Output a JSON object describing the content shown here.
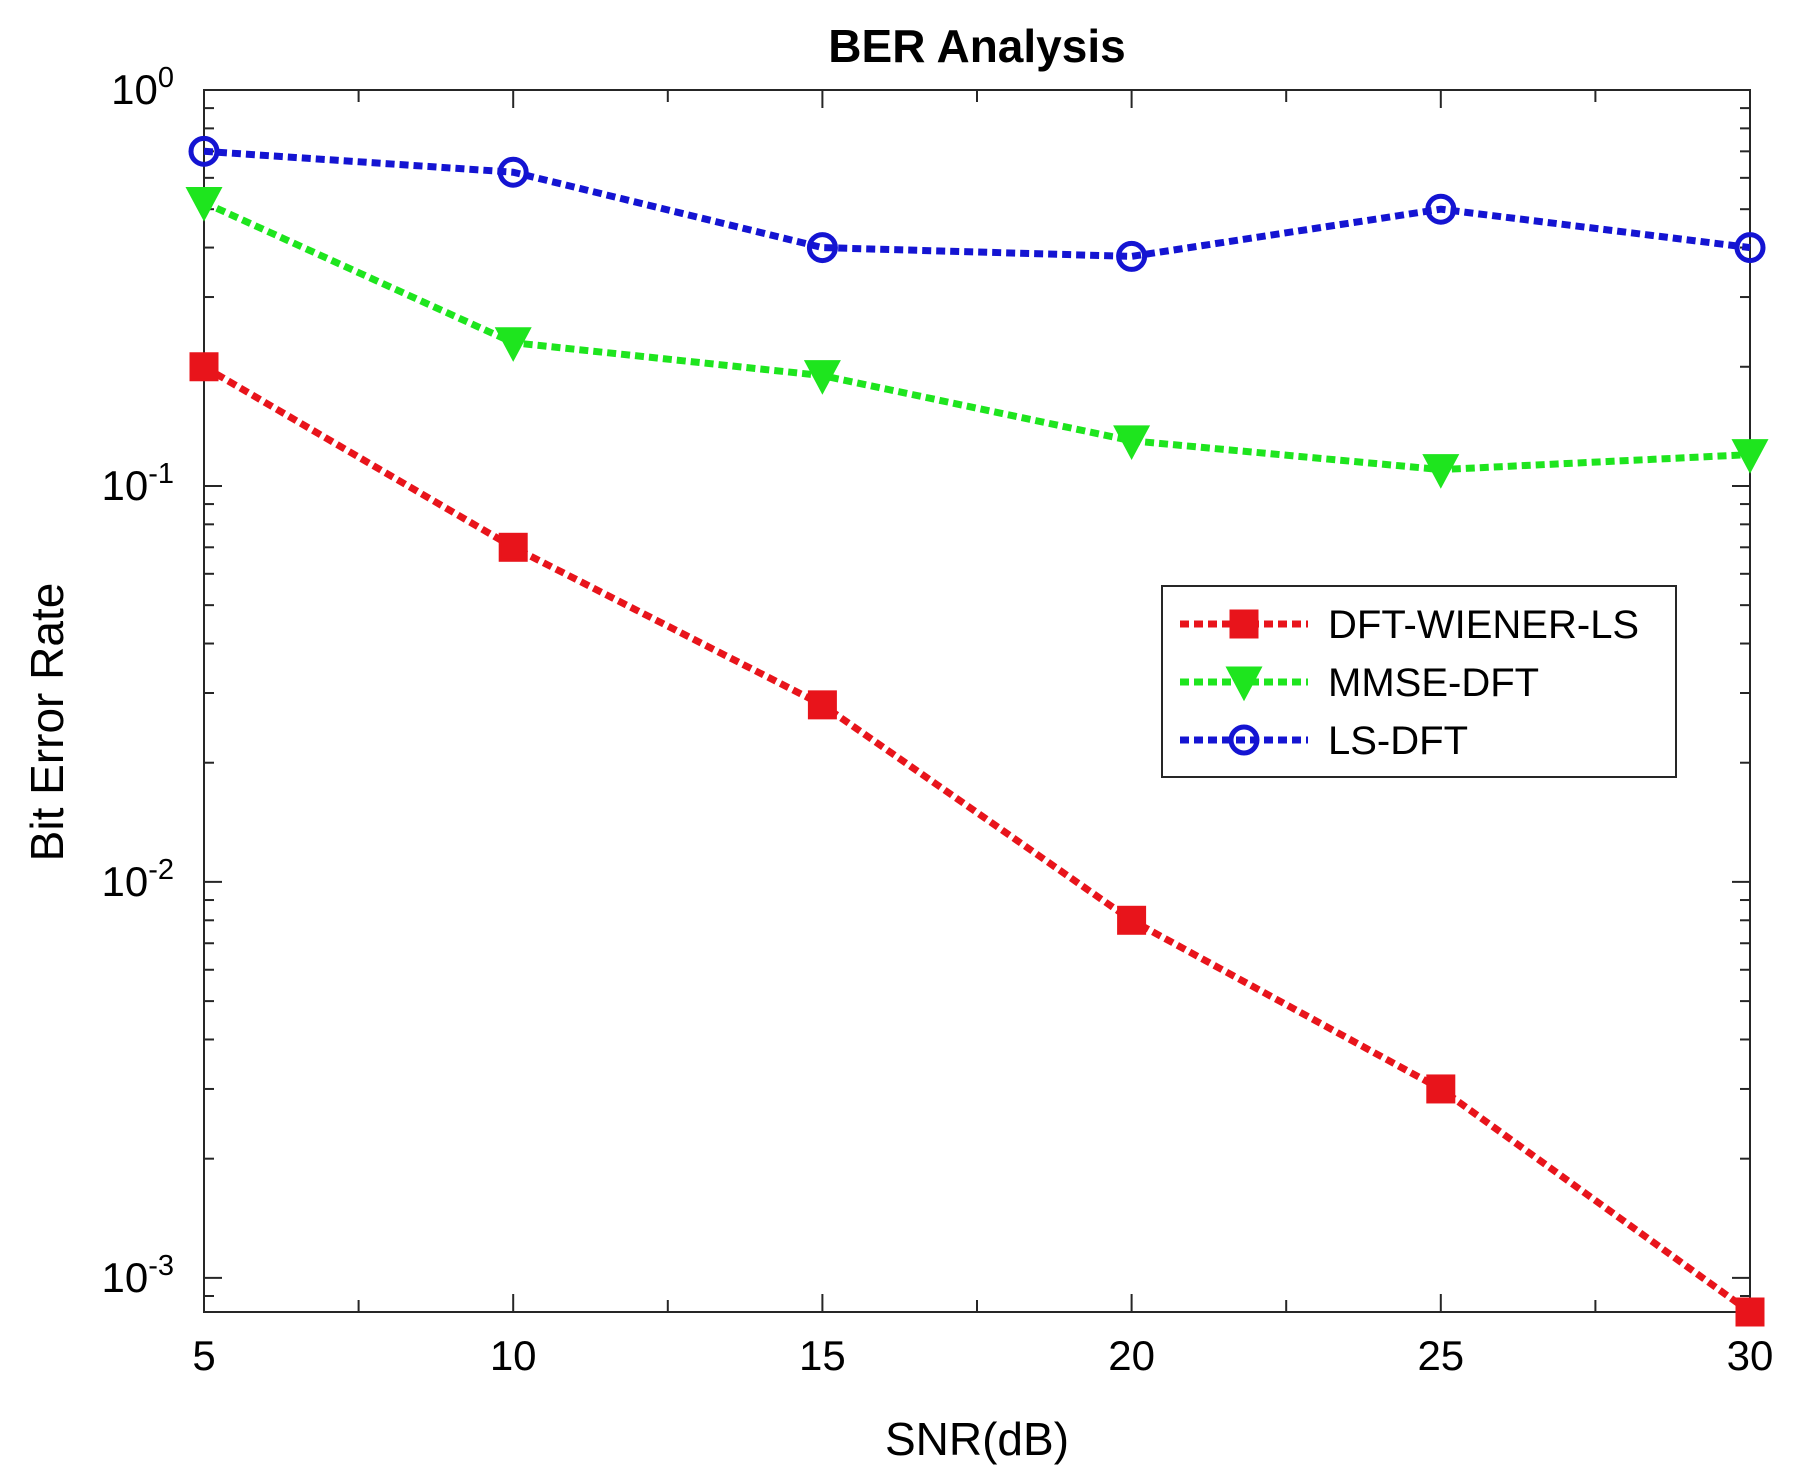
{
  "chart_data": {
    "type": "line",
    "title": "BER Analysis",
    "xlabel": "SNR(dB)",
    "ylabel": "Bit Error Rate",
    "x": [
      5,
      10,
      15,
      20,
      25,
      30
    ],
    "xlim": [
      5,
      30
    ],
    "ylim": [
      0.00082,
      1
    ],
    "yscale": "log",
    "xticks": [
      5,
      10,
      15,
      20,
      25,
      30
    ],
    "xtick_labels": [
      "5",
      "10",
      "15",
      "20",
      "25",
      "30"
    ],
    "yticks": [
      {
        "value": 1,
        "base": "10",
        "exponent": "0"
      },
      {
        "value": 0.1,
        "base": "10",
        "exponent": "-1"
      },
      {
        "value": 0.01,
        "base": "10",
        "exponent": "-2"
      },
      {
        "value": 0.001,
        "base": "10",
        "exponent": "-3"
      }
    ],
    "grid": false,
    "legend_position": "right-middle",
    "series": [
      {
        "name": "DFT-WIENER-LS",
        "color": "#e8141b",
        "marker": "filled-square",
        "linestyle": "dashed",
        "values": [
          0.2,
          0.07,
          0.028,
          0.008,
          0.003,
          0.00082
        ]
      },
      {
        "name": "MMSE-DFT",
        "color": "#1ee51e",
        "marker": "filled-triangle-down",
        "linestyle": "dashed",
        "values": [
          0.52,
          0.23,
          0.19,
          0.13,
          0.11,
          0.12
        ]
      },
      {
        "name": "LS-DFT",
        "color": "#1414d2",
        "marker": "open-circle",
        "linestyle": "dashed",
        "values": [
          0.7,
          0.62,
          0.4,
          0.38,
          0.5,
          0.4
        ]
      }
    ]
  }
}
